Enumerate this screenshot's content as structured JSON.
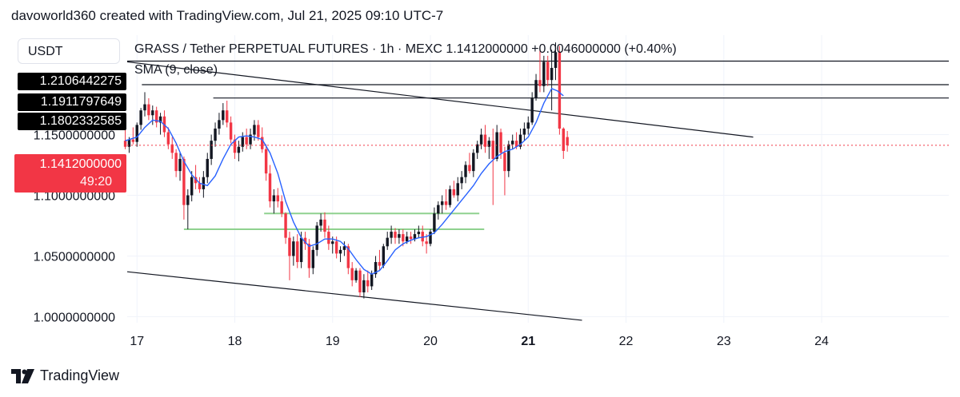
{
  "header": {
    "attribution": "davoworld360 created with TradingView.com, Jul 21, 2025 09:10 UTC-7"
  },
  "symbol_box": {
    "label": "USDT"
  },
  "legend": {
    "main": "GRASS / Tether PERPETUAL FUTURES · 1h · MEXC  1.1412000000  +0.0046000000 (+0.40%)",
    "sma": "SMA (9, close)"
  },
  "level_labels": [
    "1.2106442275",
    "1.1911797649",
    "1.1802332585"
  ],
  "current_price": {
    "value": "1.1412000000",
    "countdown": "49:20"
  },
  "footer": {
    "brand": "TradingView"
  },
  "colors": {
    "up": "#131722",
    "down": "#f23645",
    "sma": "#2962ff",
    "support_zone": "#8fd18f",
    "trendline": "#131722",
    "price_line": "#f23645"
  },
  "chart_data": {
    "type": "candlestick",
    "timeframe": "1h",
    "symbol": "GRASS / Tether PERPETUAL FUTURES",
    "exchange": "MEXC",
    "x_tick_labels": [
      "17",
      "18",
      "19",
      "20",
      "21",
      "22",
      "23",
      "24"
    ],
    "x_tick_emphasis": "21",
    "y_tick_labels": [
      "1.1500000000",
      "1.1000000000",
      "1.0500000000",
      "1.0000000000"
    ],
    "y_ticks": [
      1.15,
      1.1,
      1.05,
      1.0
    ],
    "ylim": [
      0.995,
      1.232
    ],
    "xlim": [
      16.9,
      25.3
    ],
    "grid": true,
    "last_price": 1.1412,
    "change": 0.0046,
    "change_pct": 0.4,
    "candles": [
      {
        "x": 16.88,
        "o": 1.145,
        "h": 1.155,
        "l": 1.138,
        "c": 1.14
      },
      {
        "x": 16.92,
        "o": 1.14,
        "h": 1.148,
        "l": 1.135,
        "c": 1.146
      },
      {
        "x": 16.96,
        "o": 1.146,
        "h": 1.156,
        "l": 1.142,
        "c": 1.144
      },
      {
        "x": 17.0,
        "o": 1.144,
        "h": 1.16,
        "l": 1.14,
        "c": 1.158
      },
      {
        "x": 17.04,
        "o": 1.158,
        "h": 1.172,
        "l": 1.154,
        "c": 1.17
      },
      {
        "x": 17.08,
        "o": 1.17,
        "h": 1.185,
        "l": 1.165,
        "c": 1.175
      },
      {
        "x": 17.12,
        "o": 1.175,
        "h": 1.18,
        "l": 1.162,
        "c": 1.166
      },
      {
        "x": 17.16,
        "o": 1.166,
        "h": 1.174,
        "l": 1.158,
        "c": 1.17
      },
      {
        "x": 17.2,
        "o": 1.17,
        "h": 1.173,
        "l": 1.156,
        "c": 1.16
      },
      {
        "x": 17.24,
        "o": 1.16,
        "h": 1.168,
        "l": 1.15,
        "c": 1.165
      },
      {
        "x": 17.28,
        "o": 1.165,
        "h": 1.17,
        "l": 1.148,
        "c": 1.152
      },
      {
        "x": 17.32,
        "o": 1.152,
        "h": 1.156,
        "l": 1.138,
        "c": 1.142
      },
      {
        "x": 17.36,
        "o": 1.142,
        "h": 1.148,
        "l": 1.13,
        "c": 1.135
      },
      {
        "x": 17.4,
        "o": 1.135,
        "h": 1.138,
        "l": 1.115,
        "c": 1.12
      },
      {
        "x": 17.44,
        "o": 1.12,
        "h": 1.135,
        "l": 1.112,
        "c": 1.13
      },
      {
        "x": 17.48,
        "o": 1.13,
        "h": 1.132,
        "l": 1.08,
        "c": 1.092
      },
      {
        "x": 17.52,
        "o": 1.092,
        "h": 1.105,
        "l": 1.072,
        "c": 1.1
      },
      {
        "x": 17.56,
        "o": 1.1,
        "h": 1.12,
        "l": 1.095,
        "c": 1.115
      },
      {
        "x": 17.6,
        "o": 1.115,
        "h": 1.125,
        "l": 1.105,
        "c": 1.11
      },
      {
        "x": 17.64,
        "o": 1.11,
        "h": 1.115,
        "l": 1.102,
        "c": 1.105
      },
      {
        "x": 17.68,
        "o": 1.105,
        "h": 1.12,
        "l": 1.098,
        "c": 1.115
      },
      {
        "x": 17.72,
        "o": 1.115,
        "h": 1.135,
        "l": 1.11,
        "c": 1.13
      },
      {
        "x": 17.76,
        "o": 1.13,
        "h": 1.15,
        "l": 1.125,
        "c": 1.145
      },
      {
        "x": 17.8,
        "o": 1.145,
        "h": 1.16,
        "l": 1.14,
        "c": 1.155
      },
      {
        "x": 17.84,
        "o": 1.155,
        "h": 1.168,
        "l": 1.15,
        "c": 1.162
      },
      {
        "x": 17.88,
        "o": 1.162,
        "h": 1.176,
        "l": 1.158,
        "c": 1.17
      },
      {
        "x": 17.92,
        "o": 1.17,
        "h": 1.178,
        "l": 1.156,
        "c": 1.16
      },
      {
        "x": 17.96,
        "o": 1.16,
        "h": 1.165,
        "l": 1.143,
        "c": 1.146
      },
      {
        "x": 18.0,
        "o": 1.146,
        "h": 1.15,
        "l": 1.13,
        "c": 1.135
      },
      {
        "x": 18.04,
        "o": 1.135,
        "h": 1.145,
        "l": 1.128,
        "c": 1.14
      },
      {
        "x": 18.08,
        "o": 1.14,
        "h": 1.152,
        "l": 1.136,
        "c": 1.148
      },
      {
        "x": 18.12,
        "o": 1.148,
        "h": 1.155,
        "l": 1.138,
        "c": 1.142
      },
      {
        "x": 18.16,
        "o": 1.142,
        "h": 1.155,
        "l": 1.138,
        "c": 1.15
      },
      {
        "x": 18.2,
        "o": 1.15,
        "h": 1.162,
        "l": 1.145,
        "c": 1.158
      },
      {
        "x": 18.24,
        "o": 1.158,
        "h": 1.162,
        "l": 1.145,
        "c": 1.148
      },
      {
        "x": 18.28,
        "o": 1.148,
        "h": 1.156,
        "l": 1.135,
        "c": 1.138
      },
      {
        "x": 18.32,
        "o": 1.138,
        "h": 1.142,
        "l": 1.112,
        "c": 1.118
      },
      {
        "x": 18.36,
        "o": 1.118,
        "h": 1.125,
        "l": 1.09,
        "c": 1.095
      },
      {
        "x": 18.4,
        "o": 1.095,
        "h": 1.105,
        "l": 1.085,
        "c": 1.1
      },
      {
        "x": 18.44,
        "o": 1.1,
        "h": 1.106,
        "l": 1.09,
        "c": 1.095
      },
      {
        "x": 18.48,
        "o": 1.095,
        "h": 1.1,
        "l": 1.082,
        "c": 1.085
      },
      {
        "x": 18.52,
        "o": 1.085,
        "h": 1.086,
        "l": 1.06,
        "c": 1.065
      },
      {
        "x": 18.56,
        "o": 1.065,
        "h": 1.07,
        "l": 1.03,
        "c": 1.05
      },
      {
        "x": 18.6,
        "o": 1.05,
        "h": 1.066,
        "l": 1.042,
        "c": 1.062
      },
      {
        "x": 18.64,
        "o": 1.062,
        "h": 1.068,
        "l": 1.04,
        "c": 1.045
      },
      {
        "x": 18.68,
        "o": 1.045,
        "h": 1.07,
        "l": 1.04,
        "c": 1.065
      },
      {
        "x": 18.72,
        "o": 1.065,
        "h": 1.07,
        "l": 1.055,
        "c": 1.06
      },
      {
        "x": 18.76,
        "o": 1.06,
        "h": 1.064,
        "l": 1.032,
        "c": 1.04
      },
      {
        "x": 18.8,
        "o": 1.04,
        "h": 1.058,
        "l": 1.035,
        "c": 1.055
      },
      {
        "x": 18.84,
        "o": 1.055,
        "h": 1.078,
        "l": 1.05,
        "c": 1.075
      },
      {
        "x": 18.88,
        "o": 1.075,
        "h": 1.085,
        "l": 1.07,
        "c": 1.08
      },
      {
        "x": 18.92,
        "o": 1.08,
        "h": 1.086,
        "l": 1.065,
        "c": 1.07
      },
      {
        "x": 18.96,
        "o": 1.07,
        "h": 1.075,
        "l": 1.055,
        "c": 1.06
      },
      {
        "x": 19.0,
        "o": 1.06,
        "h": 1.066,
        "l": 1.052,
        "c": 1.062
      },
      {
        "x": 19.04,
        "o": 1.062,
        "h": 1.066,
        "l": 1.048,
        "c": 1.052
      },
      {
        "x": 19.08,
        "o": 1.052,
        "h": 1.058,
        "l": 1.045,
        "c": 1.055
      },
      {
        "x": 19.12,
        "o": 1.055,
        "h": 1.062,
        "l": 1.05,
        "c": 1.058
      },
      {
        "x": 19.16,
        "o": 1.058,
        "h": 1.06,
        "l": 1.035,
        "c": 1.04
      },
      {
        "x": 19.2,
        "o": 1.04,
        "h": 1.045,
        "l": 1.025,
        "c": 1.03
      },
      {
        "x": 19.24,
        "o": 1.03,
        "h": 1.04,
        "l": 1.028,
        "c": 1.038
      },
      {
        "x": 19.28,
        "o": 1.038,
        "h": 1.04,
        "l": 1.016,
        "c": 1.02
      },
      {
        "x": 19.32,
        "o": 1.02,
        "h": 1.035,
        "l": 1.015,
        "c": 1.03
      },
      {
        "x": 19.36,
        "o": 1.03,
        "h": 1.038,
        "l": 1.02,
        "c": 1.025
      },
      {
        "x": 19.4,
        "o": 1.025,
        "h": 1.038,
        "l": 1.022,
        "c": 1.035
      },
      {
        "x": 19.44,
        "o": 1.035,
        "h": 1.05,
        "l": 1.032,
        "c": 1.045
      },
      {
        "x": 19.48,
        "o": 1.045,
        "h": 1.055,
        "l": 1.038,
        "c": 1.042
      },
      {
        "x": 19.52,
        "o": 1.042,
        "h": 1.06,
        "l": 1.04,
        "c": 1.058
      },
      {
        "x": 19.56,
        "o": 1.058,
        "h": 1.07,
        "l": 1.055,
        "c": 1.065
      },
      {
        "x": 19.6,
        "o": 1.065,
        "h": 1.075,
        "l": 1.06,
        "c": 1.07
      },
      {
        "x": 19.64,
        "o": 1.07,
        "h": 1.073,
        "l": 1.06,
        "c": 1.065
      },
      {
        "x": 19.68,
        "o": 1.065,
        "h": 1.072,
        "l": 1.06,
        "c": 1.068
      },
      {
        "x": 19.72,
        "o": 1.068,
        "h": 1.072,
        "l": 1.058,
        "c": 1.062
      },
      {
        "x": 19.76,
        "o": 1.062,
        "h": 1.07,
        "l": 1.06,
        "c": 1.066
      },
      {
        "x": 19.8,
        "o": 1.066,
        "h": 1.07,
        "l": 1.06,
        "c": 1.064
      },
      {
        "x": 19.84,
        "o": 1.064,
        "h": 1.072,
        "l": 1.062,
        "c": 1.068
      },
      {
        "x": 19.88,
        "o": 1.068,
        "h": 1.075,
        "l": 1.065,
        "c": 1.07
      },
      {
        "x": 19.92,
        "o": 1.07,
        "h": 1.075,
        "l": 1.058,
        "c": 1.062
      },
      {
        "x": 19.96,
        "o": 1.062,
        "h": 1.068,
        "l": 1.052,
        "c": 1.06
      },
      {
        "x": 20.0,
        "o": 1.06,
        "h": 1.072,
        "l": 1.058,
        "c": 1.07
      },
      {
        "x": 20.04,
        "o": 1.07,
        "h": 1.09,
        "l": 1.068,
        "c": 1.085
      },
      {
        "x": 20.08,
        "o": 1.085,
        "h": 1.095,
        "l": 1.08,
        "c": 1.092
      },
      {
        "x": 20.12,
        "o": 1.092,
        "h": 1.1,
        "l": 1.085,
        "c": 1.095
      },
      {
        "x": 20.16,
        "o": 1.095,
        "h": 1.105,
        "l": 1.088,
        "c": 1.092
      },
      {
        "x": 20.2,
        "o": 1.092,
        "h": 1.108,
        "l": 1.09,
        "c": 1.105
      },
      {
        "x": 20.24,
        "o": 1.105,
        "h": 1.112,
        "l": 1.098,
        "c": 1.1
      },
      {
        "x": 20.28,
        "o": 1.1,
        "h": 1.115,
        "l": 1.095,
        "c": 1.11
      },
      {
        "x": 20.32,
        "o": 1.11,
        "h": 1.12,
        "l": 1.105,
        "c": 1.115
      },
      {
        "x": 20.36,
        "o": 1.115,
        "h": 1.128,
        "l": 1.11,
        "c": 1.125
      },
      {
        "x": 20.4,
        "o": 1.125,
        "h": 1.135,
        "l": 1.118,
        "c": 1.12
      },
      {
        "x": 20.44,
        "o": 1.12,
        "h": 1.138,
        "l": 1.115,
        "c": 1.135
      },
      {
        "x": 20.48,
        "o": 1.135,
        "h": 1.145,
        "l": 1.13,
        "c": 1.142
      },
      {
        "x": 20.52,
        "o": 1.142,
        "h": 1.155,
        "l": 1.138,
        "c": 1.15
      },
      {
        "x": 20.56,
        "o": 1.15,
        "h": 1.158,
        "l": 1.135,
        "c": 1.14
      },
      {
        "x": 20.6,
        "o": 1.14,
        "h": 1.148,
        "l": 1.13,
        "c": 1.145
      },
      {
        "x": 20.64,
        "o": 1.145,
        "h": 1.155,
        "l": 1.092,
        "c": 1.13
      },
      {
        "x": 20.68,
        "o": 1.13,
        "h": 1.158,
        "l": 1.128,
        "c": 1.152
      },
      {
        "x": 20.72,
        "o": 1.152,
        "h": 1.155,
        "l": 1.13,
        "c": 1.135
      },
      {
        "x": 20.76,
        "o": 1.135,
        "h": 1.14,
        "l": 1.1,
        "c": 1.12
      },
      {
        "x": 20.8,
        "o": 1.12,
        "h": 1.145,
        "l": 1.115,
        "c": 1.142
      },
      {
        "x": 20.84,
        "o": 1.142,
        "h": 1.15,
        "l": 1.138,
        "c": 1.145
      },
      {
        "x": 20.88,
        "o": 1.145,
        "h": 1.152,
        "l": 1.138,
        "c": 1.14
      },
      {
        "x": 20.92,
        "o": 1.14,
        "h": 1.155,
        "l": 1.138,
        "c": 1.15
      },
      {
        "x": 20.96,
        "o": 1.15,
        "h": 1.16,
        "l": 1.145,
        "c": 1.155
      },
      {
        "x": 21.0,
        "o": 1.155,
        "h": 1.165,
        "l": 1.15,
        "c": 1.16
      },
      {
        "x": 21.04,
        "o": 1.16,
        "h": 1.185,
        "l": 1.158,
        "c": 1.18
      },
      {
        "x": 21.08,
        "o": 1.18,
        "h": 1.2,
        "l": 1.178,
        "c": 1.195
      },
      {
        "x": 21.12,
        "o": 1.195,
        "h": 1.223,
        "l": 1.185,
        "c": 1.19
      },
      {
        "x": 21.16,
        "o": 1.19,
        "h": 1.215,
        "l": 1.185,
        "c": 1.21
      },
      {
        "x": 21.2,
        "o": 1.21,
        "h": 1.215,
        "l": 1.19,
        "c": 1.195
      },
      {
        "x": 21.24,
        "o": 1.195,
        "h": 1.22,
        "l": 1.17,
        "c": 1.205
      },
      {
        "x": 21.28,
        "o": 1.205,
        "h": 1.226,
        "l": 1.195,
        "c": 1.218
      },
      {
        "x": 21.32,
        "o": 1.218,
        "h": 1.223,
        "l": 1.15,
        "c": 1.155
      },
      {
        "x": 21.36,
        "o": 1.155,
        "h": 1.156,
        "l": 1.13,
        "c": 1.1366
      },
      {
        "x": 21.4,
        "o": 1.148,
        "h": 1.153,
        "l": 1.136,
        "c": 1.1412
      }
    ],
    "sma": {
      "name": "SMA (9, close)",
      "points": [
        [
          16.88,
          1.145
        ],
        [
          17.0,
          1.148
        ],
        [
          17.08,
          1.156
        ],
        [
          17.16,
          1.162
        ],
        [
          17.24,
          1.161
        ],
        [
          17.32,
          1.155
        ],
        [
          17.4,
          1.143
        ],
        [
          17.48,
          1.128
        ],
        [
          17.56,
          1.117
        ],
        [
          17.64,
          1.11
        ],
        [
          17.72,
          1.108
        ],
        [
          17.8,
          1.116
        ],
        [
          17.88,
          1.13
        ],
        [
          17.96,
          1.142
        ],
        [
          18.04,
          1.148
        ],
        [
          18.12,
          1.149
        ],
        [
          18.2,
          1.148
        ],
        [
          18.28,
          1.146
        ],
        [
          18.36,
          1.135
        ],
        [
          18.44,
          1.118
        ],
        [
          18.52,
          1.095
        ],
        [
          18.6,
          1.078
        ],
        [
          18.68,
          1.065
        ],
        [
          18.76,
          1.058
        ],
        [
          18.84,
          1.06
        ],
        [
          18.92,
          1.064
        ],
        [
          19.0,
          1.064
        ],
        [
          19.08,
          1.062
        ],
        [
          19.16,
          1.056
        ],
        [
          19.24,
          1.047
        ],
        [
          19.32,
          1.039
        ],
        [
          19.4,
          1.035
        ],
        [
          19.48,
          1.038
        ],
        [
          19.56,
          1.046
        ],
        [
          19.64,
          1.055
        ],
        [
          19.72,
          1.06
        ],
        [
          19.8,
          1.063
        ],
        [
          19.88,
          1.065
        ],
        [
          19.96,
          1.066
        ],
        [
          20.04,
          1.069
        ],
        [
          20.12,
          1.076
        ],
        [
          20.2,
          1.084
        ],
        [
          20.28,
          1.092
        ],
        [
          20.36,
          1.1
        ],
        [
          20.44,
          1.108
        ],
        [
          20.52,
          1.118
        ],
        [
          20.6,
          1.126
        ],
        [
          20.68,
          1.132
        ],
        [
          20.76,
          1.136
        ],
        [
          20.84,
          1.138
        ],
        [
          20.92,
          1.142
        ],
        [
          21.0,
          1.148
        ],
        [
          21.08,
          1.16
        ],
        [
          21.16,
          1.176
        ],
        [
          21.24,
          1.188
        ],
        [
          21.3,
          1.186
        ],
        [
          21.36,
          1.182
        ]
      ]
    },
    "trendlines": [
      {
        "x1": 16.9,
        "y1": 1.2106,
        "x2": 25.3,
        "y2": 1.2106,
        "label": "1.2106442275"
      },
      {
        "x1": 17.05,
        "y1": 1.1912,
        "x2": 25.3,
        "y2": 1.1912,
        "label": "1.1911797649"
      },
      {
        "x1": 17.78,
        "y1": 1.1802,
        "x2": 25.3,
        "y2": 1.1802,
        "label": "1.1802332585"
      },
      {
        "x1": 16.9,
        "y1": 1.21,
        "x2": 23.3,
        "y2": 1.148
      },
      {
        "x1": 16.9,
        "y1": 1.037,
        "x2": 21.55,
        "y2": 0.997
      }
    ],
    "support_lines": [
      {
        "x1": 18.3,
        "x2": 20.5,
        "y": 1.085
      },
      {
        "x1": 17.48,
        "x2": 20.55,
        "y": 1.072
      }
    ]
  }
}
